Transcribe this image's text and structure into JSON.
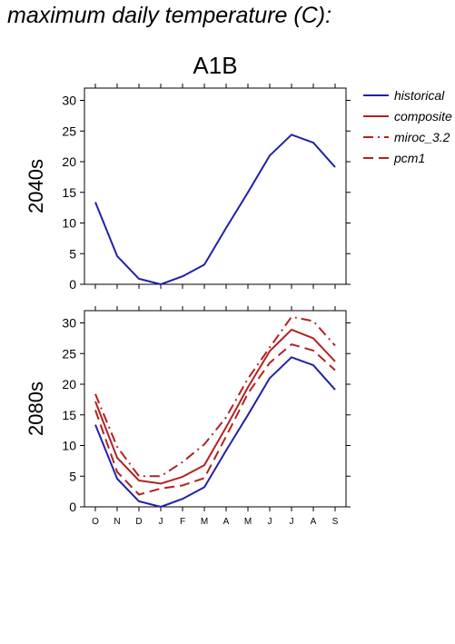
{
  "page_title": "maximum daily temperature (C):",
  "chart_data": [
    {
      "type": "line",
      "title": "A1B",
      "ylabel": "2040s",
      "xlabel": "",
      "categories": [
        "O",
        "N",
        "D",
        "J",
        "F",
        "M",
        "A",
        "M",
        "J",
        "J",
        "A",
        "S"
      ],
      "ylim": [
        0,
        32
      ],
      "yticks": [
        0,
        5,
        10,
        15,
        20,
        25,
        30
      ],
      "grid": false,
      "series": [
        {
          "name": "historical",
          "color": "#2222aa",
          "dash": "solid",
          "values": [
            13.4,
            4.6,
            0.9,
            0.0,
            1.3,
            3.2,
            9.2,
            15.0,
            21.0,
            24.4,
            23.1,
            19.1
          ]
        }
      ]
    },
    {
      "type": "line",
      "title": "",
      "ylabel": "2080s",
      "xlabel": "",
      "categories": [
        "O",
        "N",
        "D",
        "J",
        "F",
        "M",
        "A",
        "M",
        "J",
        "J",
        "A",
        "S"
      ],
      "ylim": [
        0,
        32
      ],
      "yticks": [
        0,
        5,
        10,
        15,
        20,
        25,
        30
      ],
      "grid": false,
      "series": [
        {
          "name": "historical",
          "color": "#2222aa",
          "dash": "solid",
          "values": [
            13.4,
            4.6,
            0.9,
            0.0,
            1.3,
            3.2,
            9.2,
            15.0,
            21.0,
            24.4,
            23.1,
            19.1
          ]
        },
        {
          "name": "composite",
          "color": "#b22222",
          "dash": "solid",
          "values": [
            17.2,
            8.0,
            4.3,
            3.8,
            4.9,
            6.8,
            13.0,
            19.5,
            25.4,
            28.9,
            27.5,
            23.7
          ]
        },
        {
          "name": "miroc_3.2",
          "color": "#b22222",
          "dash": "dashdot",
          "values": [
            18.4,
            9.8,
            5.0,
            5.0,
            7.3,
            10.2,
            14.6,
            20.9,
            26.0,
            31.0,
            30.3,
            26.3
          ]
        },
        {
          "name": "pcm1",
          "color": "#b22222",
          "dash": "dash",
          "values": [
            15.8,
            5.7,
            2.0,
            3.0,
            3.5,
            4.7,
            11.5,
            18.5,
            23.5,
            26.5,
            25.5,
            22.3
          ]
        }
      ]
    }
  ],
  "legend": {
    "position": "top-right",
    "items": [
      {
        "label": "historical",
        "color": "#2222aa",
        "dash": "solid"
      },
      {
        "label": "composite",
        "color": "#b22222",
        "dash": "solid"
      },
      {
        "label": "miroc_3.2",
        "color": "#b22222",
        "dash": "dashdot"
      },
      {
        "label": "pcm1",
        "color": "#b22222",
        "dash": "dash"
      }
    ]
  }
}
